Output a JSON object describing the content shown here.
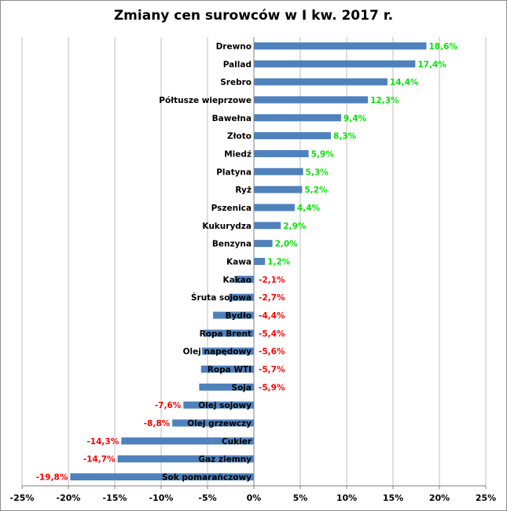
{
  "chart_data": {
    "type": "bar",
    "orientation": "horizontal",
    "title": "Zmiany cen surowców w I kw. 2017 r.",
    "xlabel": "",
    "ylabel": "",
    "xlim": [
      -25,
      25
    ],
    "x_ticks": [
      "-25%",
      "-20%",
      "-15%",
      "-10%",
      "-5%",
      "0%",
      "5%",
      "10%",
      "15%",
      "20%",
      "25%"
    ],
    "grid": true,
    "legend": "none",
    "categories": [
      "Drewno",
      "Pallad",
      "Srebro",
      "Półtusze wieprzowe",
      "Bawełna",
      "Złoto",
      "Miedź",
      "Platyna",
      "Ryż",
      "Pszenica",
      "Kukurydza",
      "Benzyna",
      "Kawa",
      "Kakao",
      "Śruta sojowa",
      "Bydło",
      "Ropa Brent",
      "Olej napędowy",
      "Ropa WTI",
      "Soja",
      "Olej sojowy",
      "Olej grzewczy",
      "Cukier",
      "Gaz ziemny",
      "Sok pomarańczowy"
    ],
    "values": [
      18.6,
      17.4,
      14.4,
      12.3,
      9.4,
      8.3,
      5.9,
      5.3,
      5.2,
      4.4,
      2.9,
      2.0,
      1.2,
      -2.1,
      -2.7,
      -4.4,
      -5.4,
      -5.6,
      -5.7,
      -5.9,
      -7.6,
      -8.8,
      -14.3,
      -14.7,
      -19.8
    ],
    "value_labels": [
      "18,6%",
      "17,4%",
      "14,4%",
      "12,3%",
      "9,4%",
      "8,3%",
      "5,9%",
      "5,3%",
      "5,2%",
      "4,4%",
      "2,9%",
      "2,0%",
      "1,2%",
      "-2,1%",
      "-2,7%",
      "-4,4%",
      "-5,4%",
      "-5,6%",
      "-5,7%",
      "-5,9%",
      "-7,6%",
      "-8,8%",
      "-14,3%",
      "-14,7%",
      "-19,8%"
    ],
    "colors": {
      "bar": "#4f81bd",
      "positive_label": "#00e600",
      "negative_label": "#ff0000",
      "grid": "#bfbfbf",
      "axis": "#808080"
    }
  }
}
